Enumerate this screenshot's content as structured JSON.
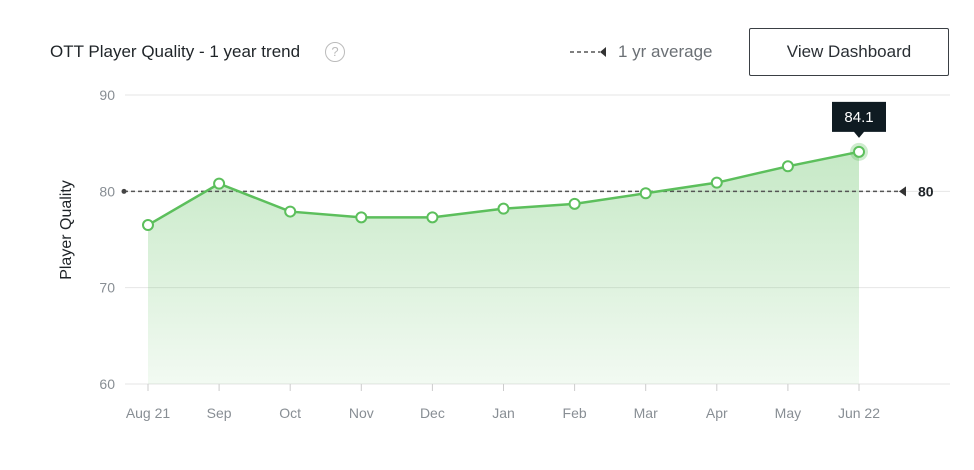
{
  "header": {
    "title": "OTT Player Quality - 1 year trend",
    "help_icon": "?",
    "legend_label": "1 yr average",
    "button_label": "View Dashboard"
  },
  "chart_data": {
    "type": "area",
    "title": "OTT Player Quality - 1 year trend",
    "xlabel": "",
    "ylabel": "Player Quality",
    "ylim": [
      60,
      90
    ],
    "yticks": [
      "60",
      "70",
      "80",
      "90"
    ],
    "categories": [
      "Aug 21",
      "Sep",
      "Oct",
      "Nov",
      "Dec",
      "Jan",
      "Feb",
      "Mar",
      "Apr",
      "May",
      "Jun 22"
    ],
    "series": [
      {
        "name": "Player Quality",
        "values": [
          76.5,
          80.8,
          77.9,
          77.3,
          77.3,
          78.2,
          78.7,
          79.8,
          80.9,
          82.6,
          84.1
        ],
        "color": "#5cbf5c"
      }
    ],
    "average": {
      "name": "1 yr average",
      "value": 80,
      "label": "80"
    },
    "tooltip": {
      "category": "Jun 22",
      "label": "84.1"
    },
    "grid": true
  }
}
